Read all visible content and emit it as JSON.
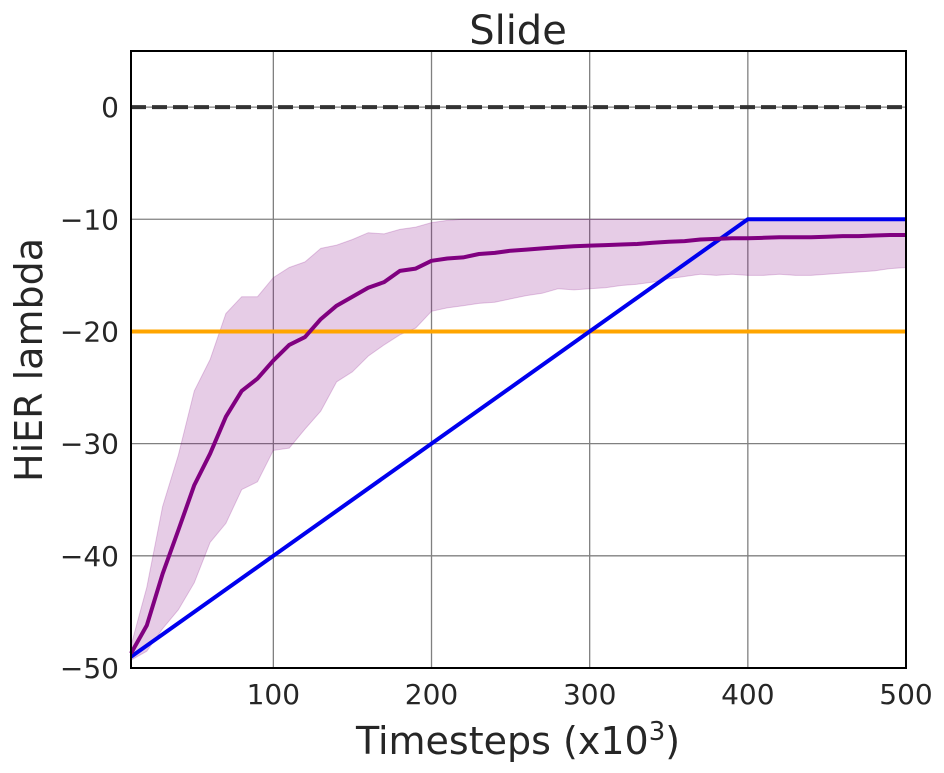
{
  "chart_data": {
    "type": "line",
    "title": "Slide",
    "xlabel": "Timesteps (x10",
    "xlabel_sup": "3",
    "xlabel_end": ")",
    "ylabel": "HiER lambda",
    "xlim": [
      10,
      500
    ],
    "ylim": [
      -50,
      5
    ],
    "grid": true,
    "xticks": [
      100,
      200,
      300,
      400,
      500
    ],
    "xtick_labels": [
      "100",
      "200",
      "300",
      "400",
      "500"
    ],
    "yticks": [
      0,
      -10,
      -20,
      -30,
      -40,
      -50
    ],
    "ytick_labels": [
      "0",
      "−10",
      "−20",
      "−30",
      "−40",
      "−50"
    ],
    "colors": {
      "reference": "#333333",
      "orange": "#ffa500",
      "blue": "#0000ee",
      "purple": "#800080",
      "band": "#800080",
      "grid": "#808080",
      "frame": "#000000"
    },
    "series": [
      {
        "style": "dashed",
        "color_key": "reference",
        "x": [
          10,
          500
        ],
        "y": [
          0,
          0
        ]
      },
      {
        "style": "solid",
        "color_key": "orange",
        "x": [
          10,
          500
        ],
        "y": [
          -20,
          -20
        ]
      },
      {
        "style": "solid",
        "color_key": "blue",
        "x": [
          10,
          400,
          500
        ],
        "y": [
          -49,
          -10,
          -10
        ]
      },
      {
        "style": "solid",
        "color_key": "purple",
        "x": [
          10,
          20,
          30,
          40,
          50,
          60,
          70,
          80,
          90,
          100,
          110,
          120,
          130,
          140,
          150,
          160,
          170,
          180,
          190,
          200,
          210,
          220,
          230,
          240,
          250,
          260,
          270,
          280,
          290,
          300,
          310,
          320,
          330,
          340,
          350,
          360,
          370,
          380,
          390,
          400,
          410,
          420,
          430,
          440,
          450,
          460,
          470,
          480,
          490,
          500
        ],
        "y": [
          -48.7,
          -46.2,
          -41.6,
          -37.7,
          -33.7,
          -30.9,
          -27.6,
          -25.3,
          -24.2,
          -22.6,
          -21.2,
          -20.5,
          -18.9,
          -17.7,
          -16.9,
          -16.1,
          -15.6,
          -14.6,
          -14.4,
          -13.7,
          -13.5,
          -13.4,
          -13.1,
          -13.0,
          -12.8,
          -12.7,
          -12.6,
          -12.5,
          -12.4,
          -12.35,
          -12.3,
          -12.25,
          -12.2,
          -12.1,
          -12.0,
          -11.95,
          -11.8,
          -11.75,
          -11.7,
          -11.7,
          -11.65,
          -11.6,
          -11.6,
          -11.6,
          -11.55,
          -11.5,
          -11.5,
          -11.45,
          -11.4,
          -11.4
        ],
        "lower": [
          -49.3,
          -48.5,
          -46.5,
          -44.8,
          -42.4,
          -38.8,
          -37.1,
          -34.1,
          -33.4,
          -30.6,
          -30.4,
          -28.7,
          -27.1,
          -24.5,
          -23.6,
          -22.2,
          -21.2,
          -20.3,
          -19.7,
          -18.2,
          -17.9,
          -17.7,
          -17.5,
          -17.4,
          -17.1,
          -16.8,
          -16.6,
          -16.2,
          -16.3,
          -16.2,
          -16.1,
          -15.9,
          -15.8,
          -15.6,
          -15.3,
          -15.1,
          -14.9,
          -15.0,
          -14.9,
          -15.0,
          -15.0,
          -14.9,
          -15.0,
          -15.0,
          -14.9,
          -14.8,
          -14.7,
          -14.6,
          -14.4,
          -14.3
        ],
        "upper": [
          -48.0,
          -42.8,
          -35.6,
          -31.0,
          -25.3,
          -22.5,
          -18.4,
          -16.9,
          -16.9,
          -15.2,
          -14.3,
          -13.8,
          -12.6,
          -12.3,
          -11.8,
          -11.2,
          -11.3,
          -10.9,
          -10.7,
          -10.3,
          -10.1,
          -10.0,
          -10.0,
          -10.0,
          -10.0,
          -10.0,
          -10.0,
          -10.0,
          -10.0,
          -10.0,
          -10.0,
          -10.0,
          -10.0,
          -10.0,
          -10.0,
          -10.0,
          -10.0,
          -10.0,
          -10.0,
          -10.0,
          -10.0,
          -10.0,
          -10.0,
          -10.0,
          -10.0,
          -10.0,
          -10.0,
          -10.0,
          -10.0,
          -10.0
        ]
      }
    ]
  }
}
